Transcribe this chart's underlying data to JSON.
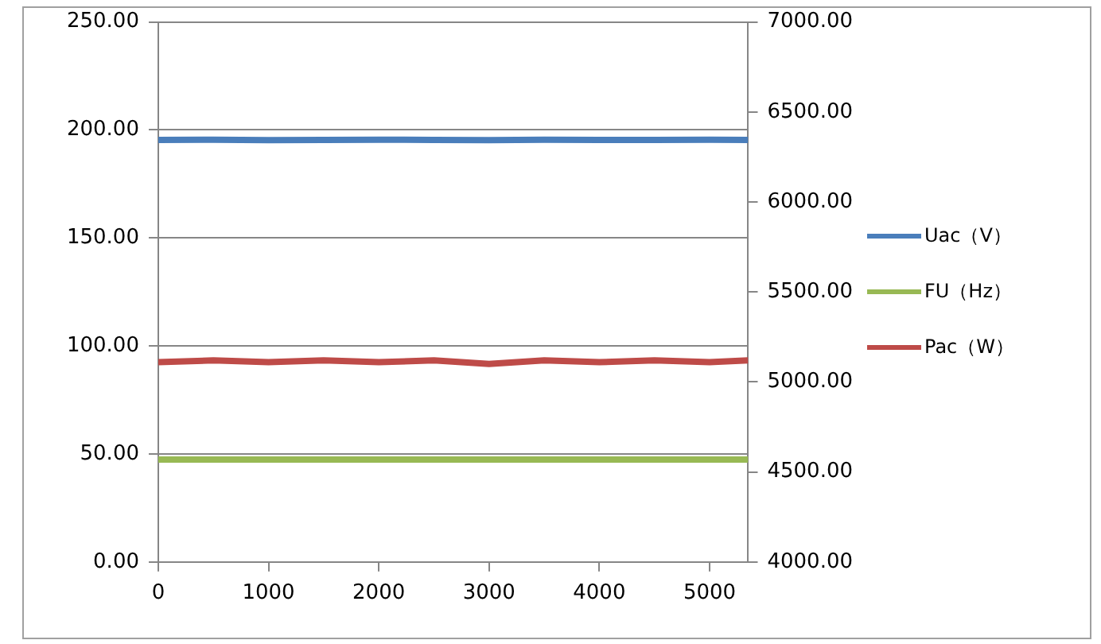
{
  "chart_data": {
    "type": "line",
    "x": [
      0,
      500,
      1000,
      1500,
      2000,
      2500,
      3000,
      3500,
      4000,
      4500,
      5000,
      5350
    ],
    "series": [
      {
        "name": "Uac（V）",
        "color": "#4a7ebb",
        "values": [
          195.4,
          195.5,
          195.3,
          195.4,
          195.5,
          195.4,
          195.3,
          195.5,
          195.4,
          195.4,
          195.5,
          195.4
        ]
      },
      {
        "name": "FU（Hz）",
        "color": "#98b954",
        "values": [
          47.4,
          47.4,
          47.4,
          47.4,
          47.4,
          47.4,
          47.4,
          47.4,
          47.4,
          47.4,
          47.4,
          47.4
        ]
      },
      {
        "name": "Pac（W）",
        "color": "#be4b48",
        "axis": "y2",
        "values": [
          5110,
          5120,
          5110,
          5120,
          5110,
          5120,
          5100,
          5120,
          5110,
          5120,
          5110,
          5120
        ]
      }
    ],
    "xlim": [
      0,
      5350
    ],
    "xticks": [
      0,
      1000,
      2000,
      3000,
      4000,
      5000
    ],
    "ylim": [
      0,
      250
    ],
    "yticks": [
      {
        "value": 0,
        "label": "0.00"
      },
      {
        "value": 50,
        "label": "50.00"
      },
      {
        "value": 100,
        "label": "100.00"
      },
      {
        "value": 150,
        "label": "150.00"
      },
      {
        "value": 200,
        "label": "200.00"
      },
      {
        "value": 250,
        "label": "250.00"
      }
    ],
    "y2lim": [
      4000,
      7000
    ],
    "y2ticks": [
      {
        "value": 4000,
        "label": "4000.00"
      },
      {
        "value": 4500,
        "label": "4500.00"
      },
      {
        "value": 5000,
        "label": "5000.00"
      },
      {
        "value": 5500,
        "label": "5500.00"
      },
      {
        "value": 6000,
        "label": "6000.00"
      },
      {
        "value": 6500,
        "label": "6500.00"
      },
      {
        "value": 7000,
        "label": "7000.00"
      }
    ],
    "grid": "y",
    "legend": "right",
    "marker": "none",
    "line_style": "solid"
  }
}
